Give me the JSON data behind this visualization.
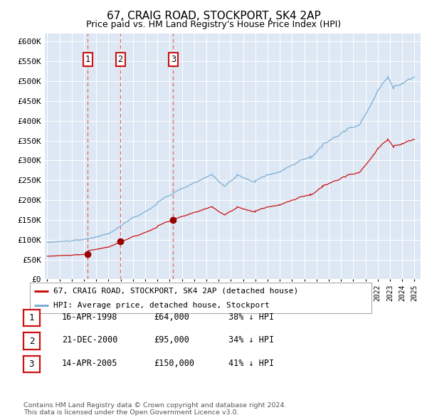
{
  "title": "67, CRAIG ROAD, STOCKPORT, SK4 2AP",
  "subtitle": "Price paid vs. HM Land Registry's House Price Index (HPI)",
  "title_fontsize": 11,
  "subtitle_fontsize": 9,
  "background_color": "#dde8f4",
  "red_line_color": "#cc1111",
  "blue_line_color": "#7aaed4",
  "sale_marker_color": "#990000",
  "vline_color": "#dd6666",
  "ylim": [
    0,
    620000
  ],
  "yticks": [
    0,
    50000,
    100000,
    150000,
    200000,
    250000,
    300000,
    350000,
    400000,
    450000,
    500000,
    550000,
    600000
  ],
  "sale_dates_num": [
    1998.29,
    2000.97,
    2005.29
  ],
  "sale_prices": [
    64000,
    95000,
    150000
  ],
  "sale_labels": [
    "1",
    "2",
    "3"
  ],
  "legend_entries": [
    "67, CRAIG ROAD, STOCKPORT, SK4 2AP (detached house)",
    "HPI: Average price, detached house, Stockport"
  ],
  "table_rows": [
    {
      "num": "1",
      "date": "16-APR-1998",
      "price": "£64,000",
      "hpi": "38% ↓ HPI"
    },
    {
      "num": "2",
      "date": "21-DEC-2000",
      "price": "£95,000",
      "hpi": "34% ↓ HPI"
    },
    {
      "num": "3",
      "date": "14-APR-2005",
      "price": "£150,000",
      "hpi": "41% ↓ HPI"
    }
  ],
  "footer": "Contains HM Land Registry data © Crown copyright and database right 2024.\nThis data is licensed under the Open Government Licence v3.0."
}
